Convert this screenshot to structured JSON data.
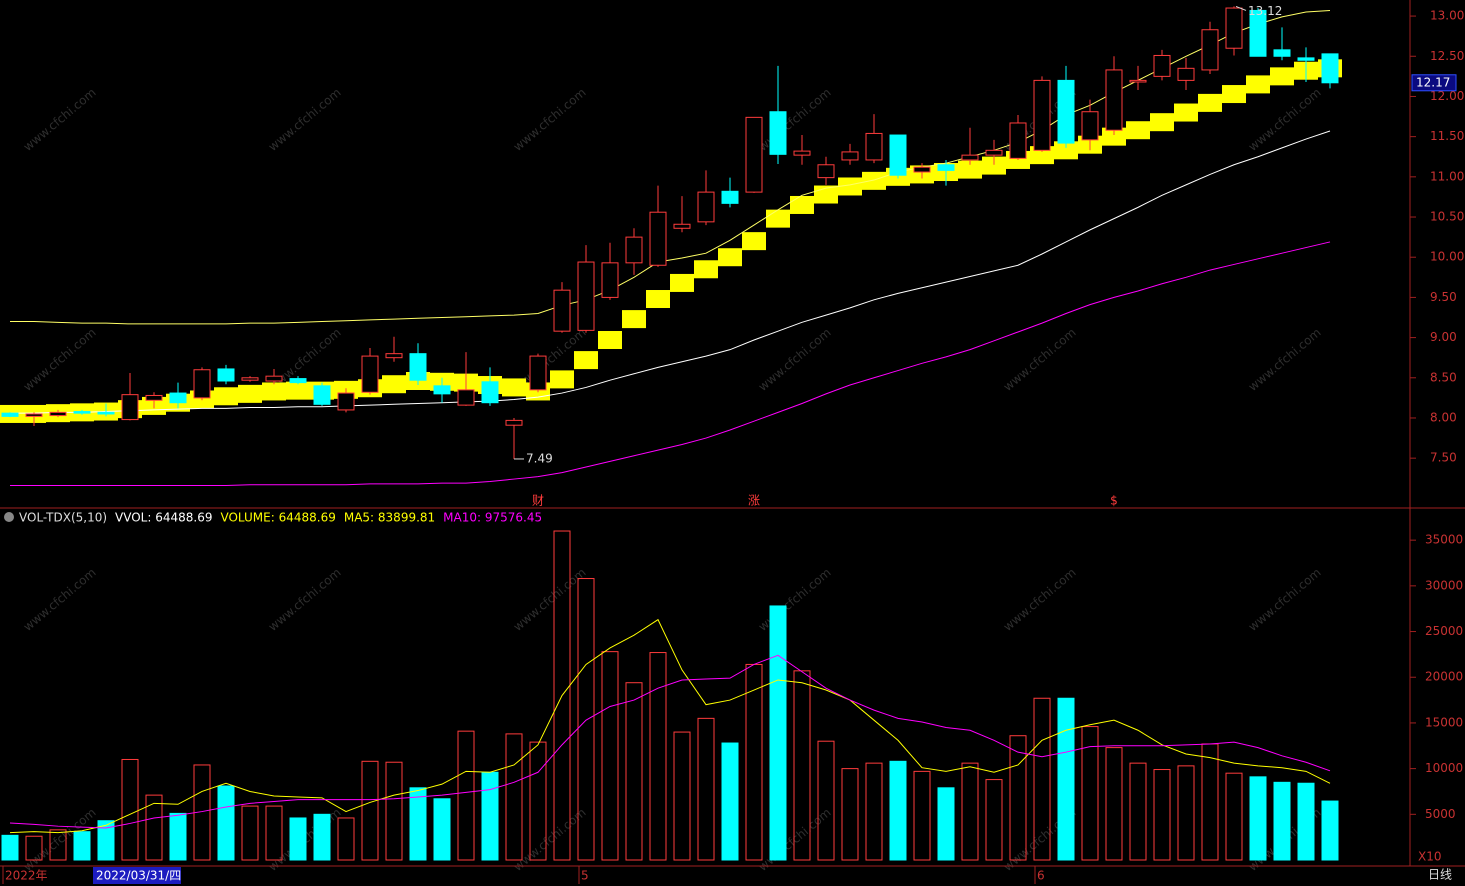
{
  "chart_data": [
    {
      "type": "candlestick",
      "categories": [
        "2022年",
        null,
        null,
        null,
        null,
        null,
        null,
        null,
        null,
        null,
        null,
        null,
        null,
        null,
        null,
        null,
        null,
        null,
        null,
        null,
        null,
        null,
        null,
        null,
        "5",
        null,
        null,
        null,
        null,
        null,
        null,
        null,
        null,
        null,
        null,
        null,
        null,
        null,
        null,
        null,
        null,
        null,
        null,
        "6",
        null,
        null,
        null,
        null,
        null,
        null,
        null,
        null,
        null,
        null,
        null,
        null
      ],
      "open": [
        8.06,
        8.02,
        8.03,
        8.08,
        8.07,
        7.98,
        8.22,
        8.31,
        8.25,
        8.61,
        8.47,
        8.46,
        8.49,
        8.4,
        8.1,
        8.32,
        8.75,
        8.8,
        8.4,
        8.16,
        8.45,
        7.91,
        8.35,
        9.08,
        9.09,
        9.5,
        9.93,
        9.9,
        10.36,
        10.44,
        10.82,
        10.81,
        11.81,
        11.27,
        10.99,
        11.21,
        11.21,
        11.52,
        11.06,
        11.15,
        11.21,
        11.27,
        11.23,
        11.33,
        12.2,
        11.46,
        11.58,
        12.18,
        12.25,
        12.2,
        12.33,
        12.6,
        13.07,
        12.58,
        12.48,
        12.53
      ],
      "high": [
        8.07,
        8.07,
        8.1,
        8.1,
        8.18,
        8.56,
        8.32,
        8.44,
        8.63,
        8.66,
        8.52,
        8.61,
        8.52,
        8.44,
        8.37,
        8.87,
        9.01,
        8.93,
        8.5,
        8.82,
        8.63,
        8.0,
        8.8,
        9.69,
        10.15,
        10.18,
        10.36,
        10.89,
        10.76,
        11.08,
        10.99,
        11.74,
        12.38,
        11.52,
        11.25,
        11.41,
        11.78,
        11.52,
        11.17,
        11.21,
        11.61,
        11.46,
        11.77,
        12.25,
        12.38,
        11.96,
        12.5,
        12.38,
        12.58,
        12.48,
        12.93,
        13.12,
        13.1,
        12.86,
        12.61,
        12.53
      ],
      "low": [
        8.01,
        7.9,
        8.01,
        8.04,
        8.02,
        7.97,
        8.12,
        8.12,
        8.22,
        8.42,
        8.45,
        8.42,
        8.42,
        8.15,
        8.07,
        8.29,
        8.7,
        8.41,
        8.19,
        8.15,
        8.15,
        7.49,
        8.32,
        9.06,
        9.06,
        9.47,
        9.78,
        9.88,
        10.31,
        10.4,
        10.62,
        10.8,
        11.16,
        11.15,
        10.9,
        11.15,
        11.17,
        10.98,
        10.98,
        10.89,
        11.15,
        11.15,
        11.21,
        11.31,
        11.36,
        11.33,
        11.52,
        12.08,
        12.2,
        12.08,
        12.28,
        12.51,
        12.5,
        12.45,
        12.18,
        12.1
      ],
      "close": [
        8.02,
        8.05,
        8.07,
        8.06,
        8.05,
        8.29,
        8.28,
        8.19,
        8.6,
        8.46,
        8.5,
        8.52,
        8.44,
        8.17,
        8.31,
        8.77,
        8.8,
        8.47,
        8.3,
        8.35,
        8.19,
        7.97,
        8.77,
        9.59,
        9.94,
        9.93,
        10.25,
        10.56,
        10.41,
        10.81,
        10.67,
        11.74,
        11.28,
        11.32,
        11.15,
        11.31,
        11.54,
        11.02,
        11.12,
        11.08,
        11.27,
        11.33,
        11.67,
        12.2,
        11.42,
        11.81,
        12.33,
        12.2,
        12.51,
        12.35,
        12.83,
        13.1,
        12.5,
        12.5,
        12.45,
        12.17
      ],
      "up_color": "#ff3c3c",
      "down_color": "#00ffff",
      "band": {
        "color": "#ffff00",
        "values": [
          8.05,
          8.05,
          8.06,
          8.07,
          8.08,
          8.11,
          8.15,
          8.19,
          8.23,
          8.27,
          8.3,
          8.33,
          8.34,
          8.34,
          8.35,
          8.37,
          8.42,
          8.46,
          8.45,
          8.44,
          8.41,
          8.38,
          8.33,
          8.48,
          8.72,
          8.97,
          9.23,
          9.48,
          9.68,
          9.85,
          10.0,
          10.2,
          10.48,
          10.65,
          10.78,
          10.88,
          10.95,
          11.0,
          11.03,
          11.06,
          11.09,
          11.14,
          11.21,
          11.27,
          11.33,
          11.4,
          11.5,
          11.58,
          11.68,
          11.8,
          11.92,
          12.03,
          12.15,
          12.25,
          12.32,
          12.35
        ]
      },
      "lines": [
        {
          "color": "#ffff66",
          "values": [
            9.2,
            9.2,
            9.19,
            9.18,
            9.18,
            9.17,
            9.17,
            9.17,
            9.17,
            9.17,
            9.18,
            9.18,
            9.19,
            9.2,
            9.21,
            9.22,
            9.23,
            9.24,
            9.25,
            9.26,
            9.27,
            9.28,
            9.3,
            9.4,
            9.47,
            9.59,
            9.75,
            9.94,
            9.99,
            10.05,
            10.21,
            10.4,
            10.59,
            10.77,
            10.86,
            10.9,
            10.96,
            11.06,
            11.12,
            11.17,
            11.25,
            11.33,
            11.43,
            11.58,
            11.77,
            11.89,
            12.05,
            12.2,
            12.35,
            12.5,
            12.64,
            12.79,
            12.9,
            12.99,
            13.05,
            13.07
          ]
        },
        {
          "color": "#ffffff",
          "values": [
            8.06,
            8.06,
            8.07,
            8.07,
            8.08,
            8.09,
            8.1,
            8.11,
            8.12,
            8.12,
            8.13,
            8.13,
            8.14,
            8.14,
            8.15,
            8.16,
            8.17,
            8.18,
            8.19,
            8.2,
            8.21,
            8.23,
            8.26,
            8.31,
            8.38,
            8.47,
            8.55,
            8.63,
            8.7,
            8.77,
            8.85,
            8.97,
            9.08,
            9.19,
            9.28,
            9.37,
            9.47,
            9.55,
            9.62,
            9.69,
            9.76,
            9.83,
            9.9,
            10.04,
            10.19,
            10.34,
            10.48,
            10.62,
            10.77,
            10.9,
            11.03,
            11.15,
            11.25,
            11.36,
            11.47,
            11.57
          ]
        },
        {
          "color": "#ff00ff",
          "values": [
            7.16,
            7.16,
            7.16,
            7.16,
            7.16,
            7.16,
            7.16,
            7.16,
            7.16,
            7.16,
            7.17,
            7.17,
            7.17,
            7.17,
            7.17,
            7.18,
            7.18,
            7.18,
            7.19,
            7.19,
            7.21,
            7.24,
            7.27,
            7.32,
            7.39,
            7.46,
            7.53,
            7.6,
            7.67,
            7.75,
            7.85,
            7.96,
            8.07,
            8.18,
            8.3,
            8.41,
            8.5,
            8.59,
            8.68,
            8.76,
            8.85,
            8.96,
            9.07,
            9.18,
            9.3,
            9.41,
            9.5,
            9.58,
            9.67,
            9.75,
            9.84,
            9.91,
            9.98,
            10.05,
            10.12,
            10.19
          ]
        }
      ],
      "events": [
        null,
        null,
        null,
        null,
        null,
        null,
        null,
        null,
        null,
        null,
        null,
        null,
        null,
        null,
        null,
        null,
        null,
        null,
        null,
        null,
        null,
        null,
        "财",
        null,
        null,
        null,
        null,
        null,
        null,
        null,
        null,
        "涨",
        null,
        null,
        null,
        null,
        null,
        null,
        null,
        null,
        null,
        null,
        null,
        null,
        null,
        null,
        "$",
        null,
        null,
        null,
        null,
        null,
        null,
        null,
        null,
        null
      ],
      "event_color": "#ff3c3c",
      "ylim": [
        6.88,
        13.2
      ],
      "yticks": [
        {
          "value": 7.5,
          "label": "7.50"
        },
        {
          "value": 8,
          "label": "8.00"
        },
        {
          "value": 8.5,
          "label": "8.50"
        },
        {
          "value": 9,
          "label": "9.00"
        },
        {
          "value": 9.5,
          "label": "9.50"
        },
        {
          "value": 10,
          "label": "10.00"
        },
        {
          "value": 10.5,
          "label": "10.50"
        },
        {
          "value": 11,
          "label": "11.00"
        },
        {
          "value": 11.5,
          "label": "11.50"
        },
        {
          "value": 12,
          "label": "12.00"
        },
        {
          "value": 12.5,
          "label": "12.50"
        },
        {
          "value": 13,
          "label": "13.00"
        }
      ]
    },
    {
      "type": "bar",
      "title": "VOL-TDX(5,10)",
      "readouts": [
        {
          "text": "VVOL: 64488.69",
          "color": "#ffffff"
        },
        {
          "text": "VOLUME: 64488.69",
          "color": "#ffff00"
        },
        {
          "text": "MA5: 83899.81",
          "color": "#ffff00"
        },
        {
          "text": "MA10: 97576.45",
          "color": "#ff00ff"
        }
      ],
      "values": [
        2700,
        2600,
        3300,
        3100,
        4300,
        11000,
        7100,
        5100,
        10400,
        8100,
        5900,
        5900,
        4600,
        5000,
        4600,
        10800,
        10700,
        7900,
        6700,
        14100,
        9600,
        13800,
        12900,
        36000,
        30800,
        22800,
        19400,
        22700,
        14000,
        15500,
        12800,
        21400,
        27800,
        20700,
        13000,
        10000,
        10600,
        10800,
        9700,
        7900,
        10600,
        8800,
        13600,
        17700,
        17700,
        14600,
        12300,
        10600,
        9900,
        10300,
        12700,
        9500,
        9100,
        8500,
        8400,
        6449
      ],
      "lines": [
        {
          "color": "#ffff00",
          "values": [
            3000,
            3100,
            3000,
            3200,
            3800,
            5000,
            6200,
            6100,
            7500,
            8400,
            7500,
            7000,
            6900,
            6800,
            5300,
            6300,
            7100,
            7600,
            8300,
            9700,
            9600,
            10400,
            12600,
            18000,
            21400,
            23200,
            24600,
            26300,
            20800,
            17000,
            17500,
            18600,
            19700,
            19400,
            18600,
            17500,
            15300,
            13100,
            10100,
            9700,
            10200,
            9600,
            10400,
            13100,
            14200,
            14800,
            15300,
            14200,
            12600,
            11600,
            11200,
            10600,
            10300,
            10100,
            9700,
            8390
          ]
        },
        {
          "color": "#ff00ff",
          "values": [
            4050,
            3900,
            3700,
            3600,
            3500,
            4000,
            4600,
            4900,
            5300,
            5800,
            6200,
            6400,
            6600,
            6600,
            6600,
            6600,
            6700,
            6900,
            7100,
            7400,
            7700,
            8500,
            9600,
            12600,
            15300,
            16800,
            17500,
            18800,
            19700,
            19800,
            19900,
            21400,
            22400,
            20600,
            18800,
            17500,
            16400,
            15500,
            15100,
            14500,
            14200,
            13100,
            11800,
            11300,
            11800,
            12400,
            12500,
            12500,
            12500,
            12600,
            12700,
            12900,
            12300,
            11400,
            10700,
            9758
          ]
        }
      ],
      "ylim": [
        0,
        38300
      ],
      "yticks": [
        5000,
        10000,
        15000,
        20000,
        25000,
        30000,
        35000
      ],
      "unit": "X10"
    }
  ],
  "cursor_date": "2022/03/31/四",
  "period": "日线",
  "watermark": "www.cfchi.com"
}
